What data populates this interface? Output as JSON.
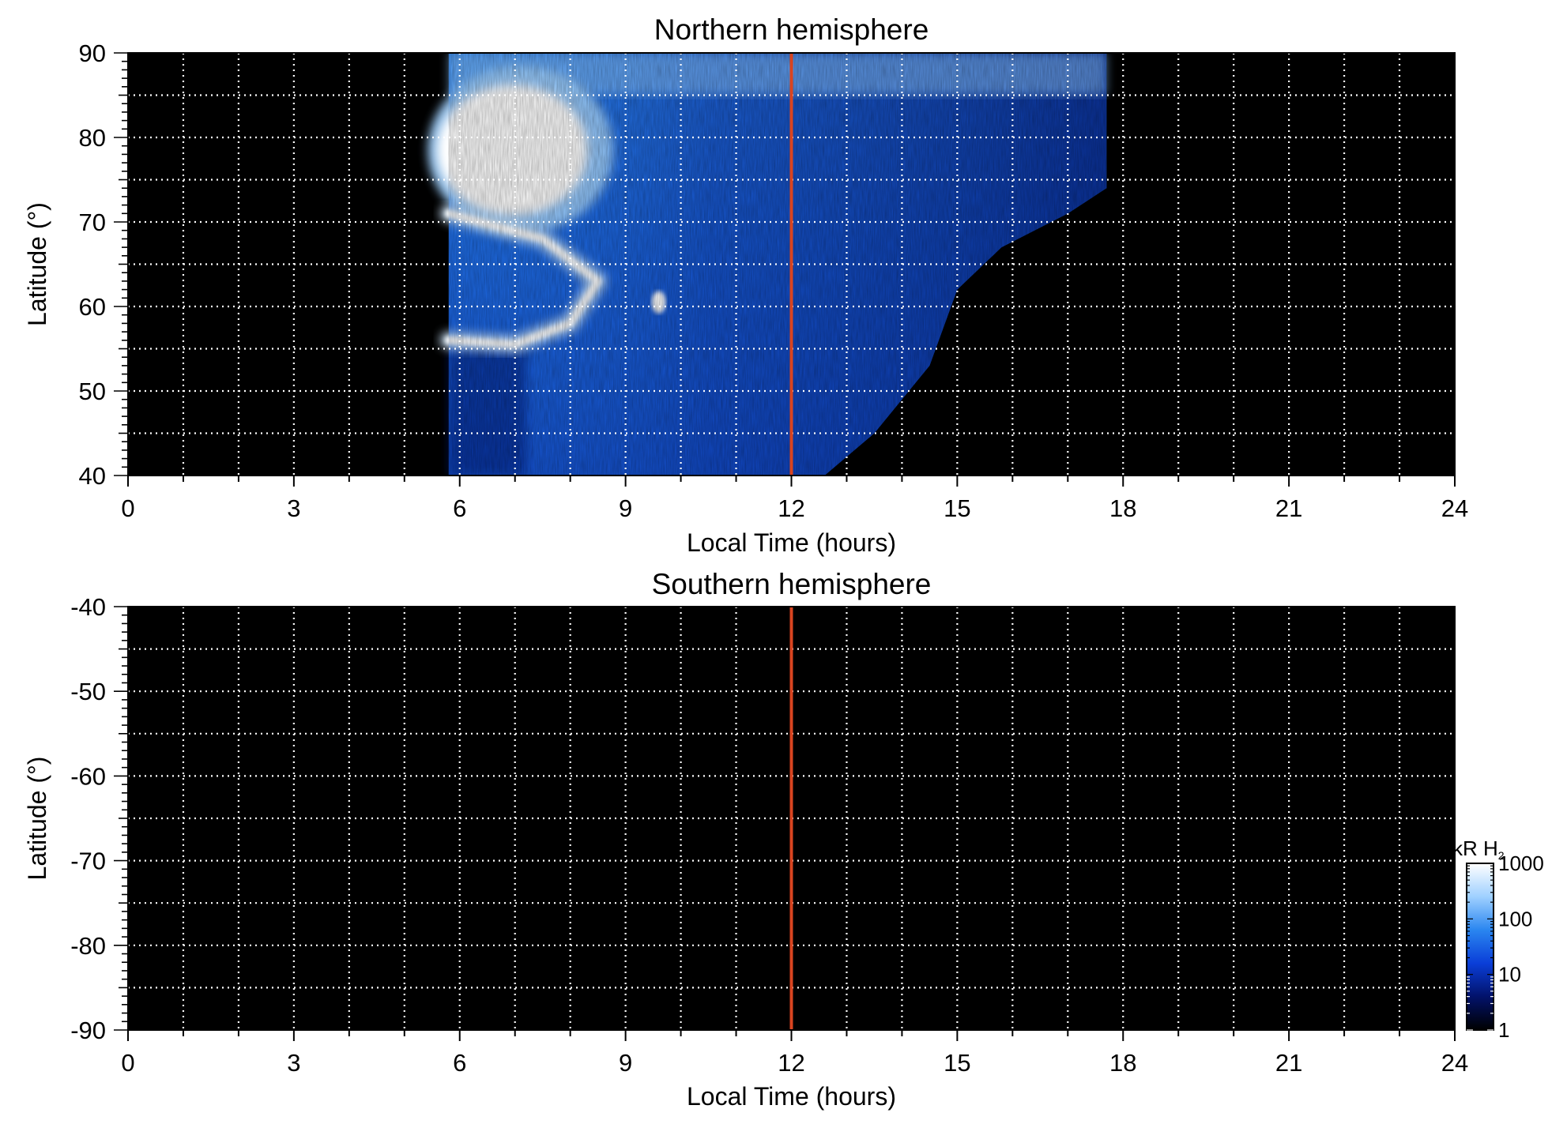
{
  "chart_data": [
    {
      "type": "heatmap",
      "title": "Northern hemisphere",
      "xlabel": "Local Time (hours)",
      "ylabel": "Latitude (°)",
      "xlim": [
        0,
        24
      ],
      "ylim": [
        40,
        90
      ],
      "xticks": [
        0,
        3,
        6,
        9,
        12,
        15,
        18,
        21,
        24
      ],
      "yticks": [
        40,
        50,
        60,
        70,
        80,
        90
      ],
      "grid": true,
      "grid_x_step_hours": 1,
      "grid_y_step_deg": 5,
      "background_color": "#000000",
      "marker_line": {
        "x": 12,
        "color": "#d94420"
      },
      "coverage": {
        "description": "Emission observed between about 5.8 h and 17.7 h LT; dark region bounded on the afternoon side",
        "dawn_edge_lt": 5.8,
        "dusk_edge_lt": 17.7,
        "dusk_boundary": [
          [
            12.6,
            40
          ],
          [
            13.5,
            45
          ],
          [
            14.5,
            53
          ],
          [
            15.0,
            62
          ],
          [
            15.8,
            67
          ],
          [
            17.0,
            71
          ],
          [
            17.7,
            74
          ]
        ]
      },
      "features": [
        {
          "label": "bright auroral region",
          "lt_range": [
            5.8,
            9.0
          ],
          "lat_range": [
            70,
            85
          ],
          "level_kR": 1000
        },
        {
          "label": "bright arc",
          "points": [
            [
              5.8,
              56
            ],
            [
              7.0,
              55.5
            ],
            [
              8.0,
              58
            ],
            [
              8.5,
              63
            ],
            [
              7.5,
              68
            ],
            [
              5.8,
              71
            ]
          ],
          "level_kR": 1000
        },
        {
          "label": "bright spot",
          "lt": 9.6,
          "lat": 60.5,
          "level_kR": 1000
        }
      ]
    },
    {
      "type": "heatmap",
      "title": "Southern hemisphere",
      "xlabel": "Local Time (hours)",
      "ylabel": "Latitude (°)",
      "xlim": [
        0,
        24
      ],
      "ylim": [
        -90,
        -40
      ],
      "xticks": [
        0,
        3,
        6,
        9,
        12,
        15,
        18,
        21,
        24
      ],
      "yticks": [
        -40,
        -50,
        -60,
        -70,
        -80,
        -90
      ],
      "grid": true,
      "grid_x_step_hours": 1,
      "grid_y_step_deg": 5,
      "background_color": "#000000",
      "marker_line": {
        "x": 12,
        "color": "#d94420"
      },
      "coverage": {
        "description": "No emission observed (entirely black)"
      }
    }
  ],
  "colorbar": {
    "label": "kR H",
    "label_subscript": "2",
    "scale": "log",
    "range": [
      1,
      1000
    ],
    "ticks": [
      "1",
      "10",
      "100",
      "1000"
    ],
    "colors": [
      "#000000",
      "#02126a",
      "#0a3ed8",
      "#2a86f0",
      "#9fd0ff",
      "#ffffff"
    ]
  }
}
